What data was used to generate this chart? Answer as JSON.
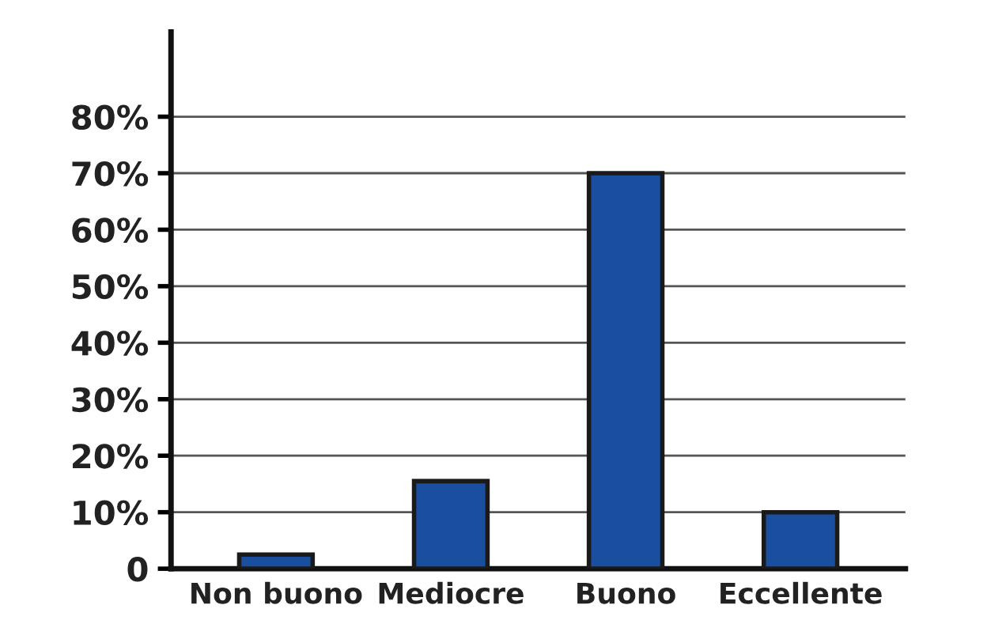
{
  "chart_data": {
    "type": "bar",
    "categories": [
      "Non buono",
      "Mediocre",
      "Buono",
      "Eccellente"
    ],
    "values": [
      2.5,
      15.5,
      70,
      10
    ],
    "color": "#1a4fa0",
    "ylim": [
      0,
      95
    ],
    "yticks": [
      0,
      {
        "value": 10,
        "label": "10%"
      },
      {
        "value": 20,
        "label": "20%"
      },
      {
        "value": 30,
        "label": "30%"
      },
      {
        "value": 40,
        "label": "40%"
      },
      {
        "value": 50,
        "label": "50%"
      },
      {
        "value": 60,
        "label": "60%"
      },
      {
        "value": 70,
        "label": "70%"
      },
      {
        "value": 80,
        "label": "80%"
      }
    ],
    "grid": "y"
  }
}
